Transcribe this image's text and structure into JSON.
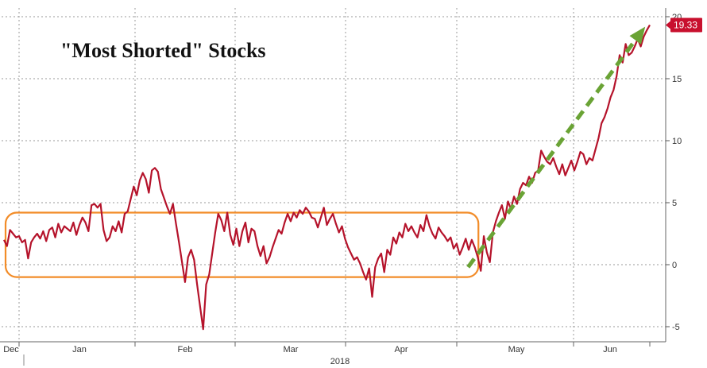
{
  "chart_data": {
    "type": "line",
    "title": "\"Most Shorted\" Stocks",
    "xlabel": "2018",
    "ylabel": "",
    "x_tick_labels": [
      "Dec",
      "Jan",
      "Feb",
      "Mar",
      "Apr",
      "May",
      "Jun"
    ],
    "x_year_label": "2018",
    "y_ticks": [
      -5,
      0,
      5,
      10,
      15,
      20
    ],
    "ylim": [
      -6,
      20
    ],
    "grid": true,
    "last_value_label": "19.33",
    "series": [
      {
        "color": "#b5132b",
        "values": [
          2,
          1.5,
          2.8,
          2.5,
          2.2,
          2.3,
          1.8,
          2,
          0.5,
          1.8,
          2.2,
          2.5,
          2.1,
          2.7,
          1.9,
          2.8,
          3,
          2.2,
          3.3,
          2.6,
          3.1,
          2.9,
          2.7,
          3.4,
          2.4,
          3.2,
          3.8,
          3.4,
          2.7,
          4.8,
          4.9,
          4.6,
          4.9,
          2.8,
          1.9,
          2.2,
          3.1,
          2.7,
          3.5,
          2.6,
          4.1,
          4.3,
          5.3,
          6.3,
          5.6,
          6.8,
          7.4,
          6.9,
          5.8,
          7.6,
          7.8,
          7.5,
          6.1,
          5.4,
          4.7,
          4.1,
          4.9,
          3.3,
          1.8,
          0.2,
          -1.4,
          0.6,
          1.2,
          0.4,
          -1.6,
          -3.4,
          -5.2,
          -1.6,
          -0.8,
          0.9,
          2.6,
          4.1,
          3.6,
          2.7,
          4.2,
          2.4,
          1.6,
          2.9,
          1.5,
          2.7,
          3.4,
          1.8,
          2.9,
          2.7,
          1.5,
          0.7,
          1.5,
          0.1,
          0.6,
          1.4,
          2.1,
          2.8,
          2.5,
          3.4,
          4.1,
          3.5,
          4.2,
          3.8,
          4.4,
          4.1,
          4.6,
          4.3,
          3.8,
          3.7,
          3,
          3.8,
          4.6,
          3.2,
          3.7,
          4.1,
          3.3,
          2.6,
          3.1,
          2.1,
          1.4,
          0.9,
          0.4,
          0.6,
          0.1,
          -0.6,
          -1.2,
          -0.3,
          -2.6,
          -0.2,
          0.5,
          0.9,
          -0.6,
          1.2,
          0.8,
          2.2,
          1.7,
          2.6,
          2.2,
          3.3,
          2.7,
          3.1,
          2.6,
          2.2,
          3.2,
          2.7,
          4,
          3.1,
          2.5,
          2.1,
          3,
          2.6,
          2.3,
          1.9,
          2.2,
          1.3,
          1.7,
          0.8,
          1.4,
          2.1,
          1.2,
          2,
          1.4,
          0.6,
          -0.5,
          2.3,
          1,
          0.2,
          2.6,
          3.5,
          4.2,
          4.8,
          3.7,
          5.1,
          4.5,
          5.5,
          4.9,
          6.1,
          6.6,
          6.4,
          7.1,
          6.6,
          7.4,
          7.6,
          9.2,
          8.7,
          8.3,
          8.1,
          8.6,
          7.9,
          7.3,
          8.1,
          7.2,
          7.8,
          8.4,
          7.6,
          8.3,
          9.1,
          8.9,
          8.1,
          8.6,
          8.4,
          9.3,
          10.2,
          11.4,
          11.9,
          12.6,
          13.5,
          14.1,
          15.2,
          16.9,
          16.3,
          17.8,
          16.9,
          17.1,
          17.6,
          18.2,
          17.6,
          18.4,
          18.9,
          19.33
        ]
      }
    ],
    "annotations": [
      {
        "type": "range-box",
        "from_index": 0,
        "to_index": 158,
        "y_low": -1,
        "y_high": 4.2,
        "color": "#f28c28"
      },
      {
        "type": "dashed-arrow",
        "from": [
          158,
          -0.2
        ],
        "to": [
          215,
          19.5
        ],
        "color": "#6aa335"
      }
    ]
  }
}
